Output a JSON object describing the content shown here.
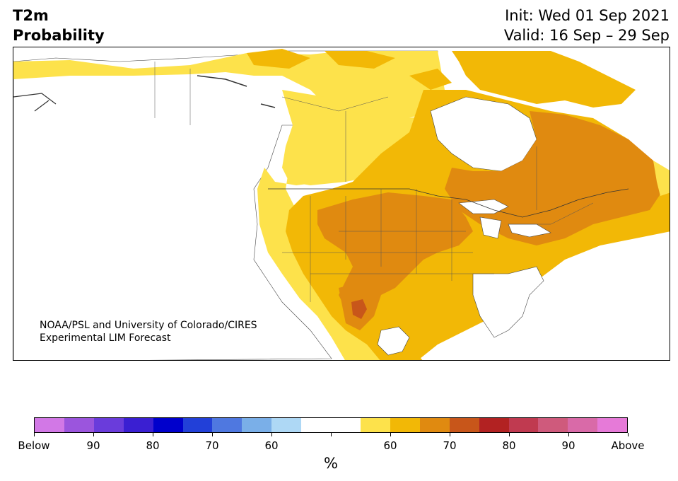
{
  "header": {
    "title_line1": "T2m",
    "title_line2": "Probability",
    "init": "Init: Wed 01 Sep 2021",
    "valid": "Valid: 16 Sep – 29 Sep"
  },
  "map": {
    "region": "North America",
    "credit_line1": "NOAA/PSL and University of Colorado/CIRES",
    "credit_line2": "Experimental LIM Forecast"
  },
  "colorbar": {
    "colors": [
      "#d278e6",
      "#9b55dd",
      "#6a3cdb",
      "#3a1fd2",
      "#0000cc",
      "#2240d8",
      "#4f78e0",
      "#7aafe8",
      "#aed8f5",
      "#ffffff",
      "#ffffff",
      "#fde24b",
      "#f2b806",
      "#e08a10",
      "#c8561a",
      "#b22222",
      "#c03a50",
      "#cf5a7c",
      "#d96aa8",
      "#e67ad8"
    ],
    "labels": [
      "Below",
      "90",
      "80",
      "70",
      "60",
      "",
      "60",
      "70",
      "80",
      "90",
      "Above"
    ],
    "unit": "%"
  }
}
